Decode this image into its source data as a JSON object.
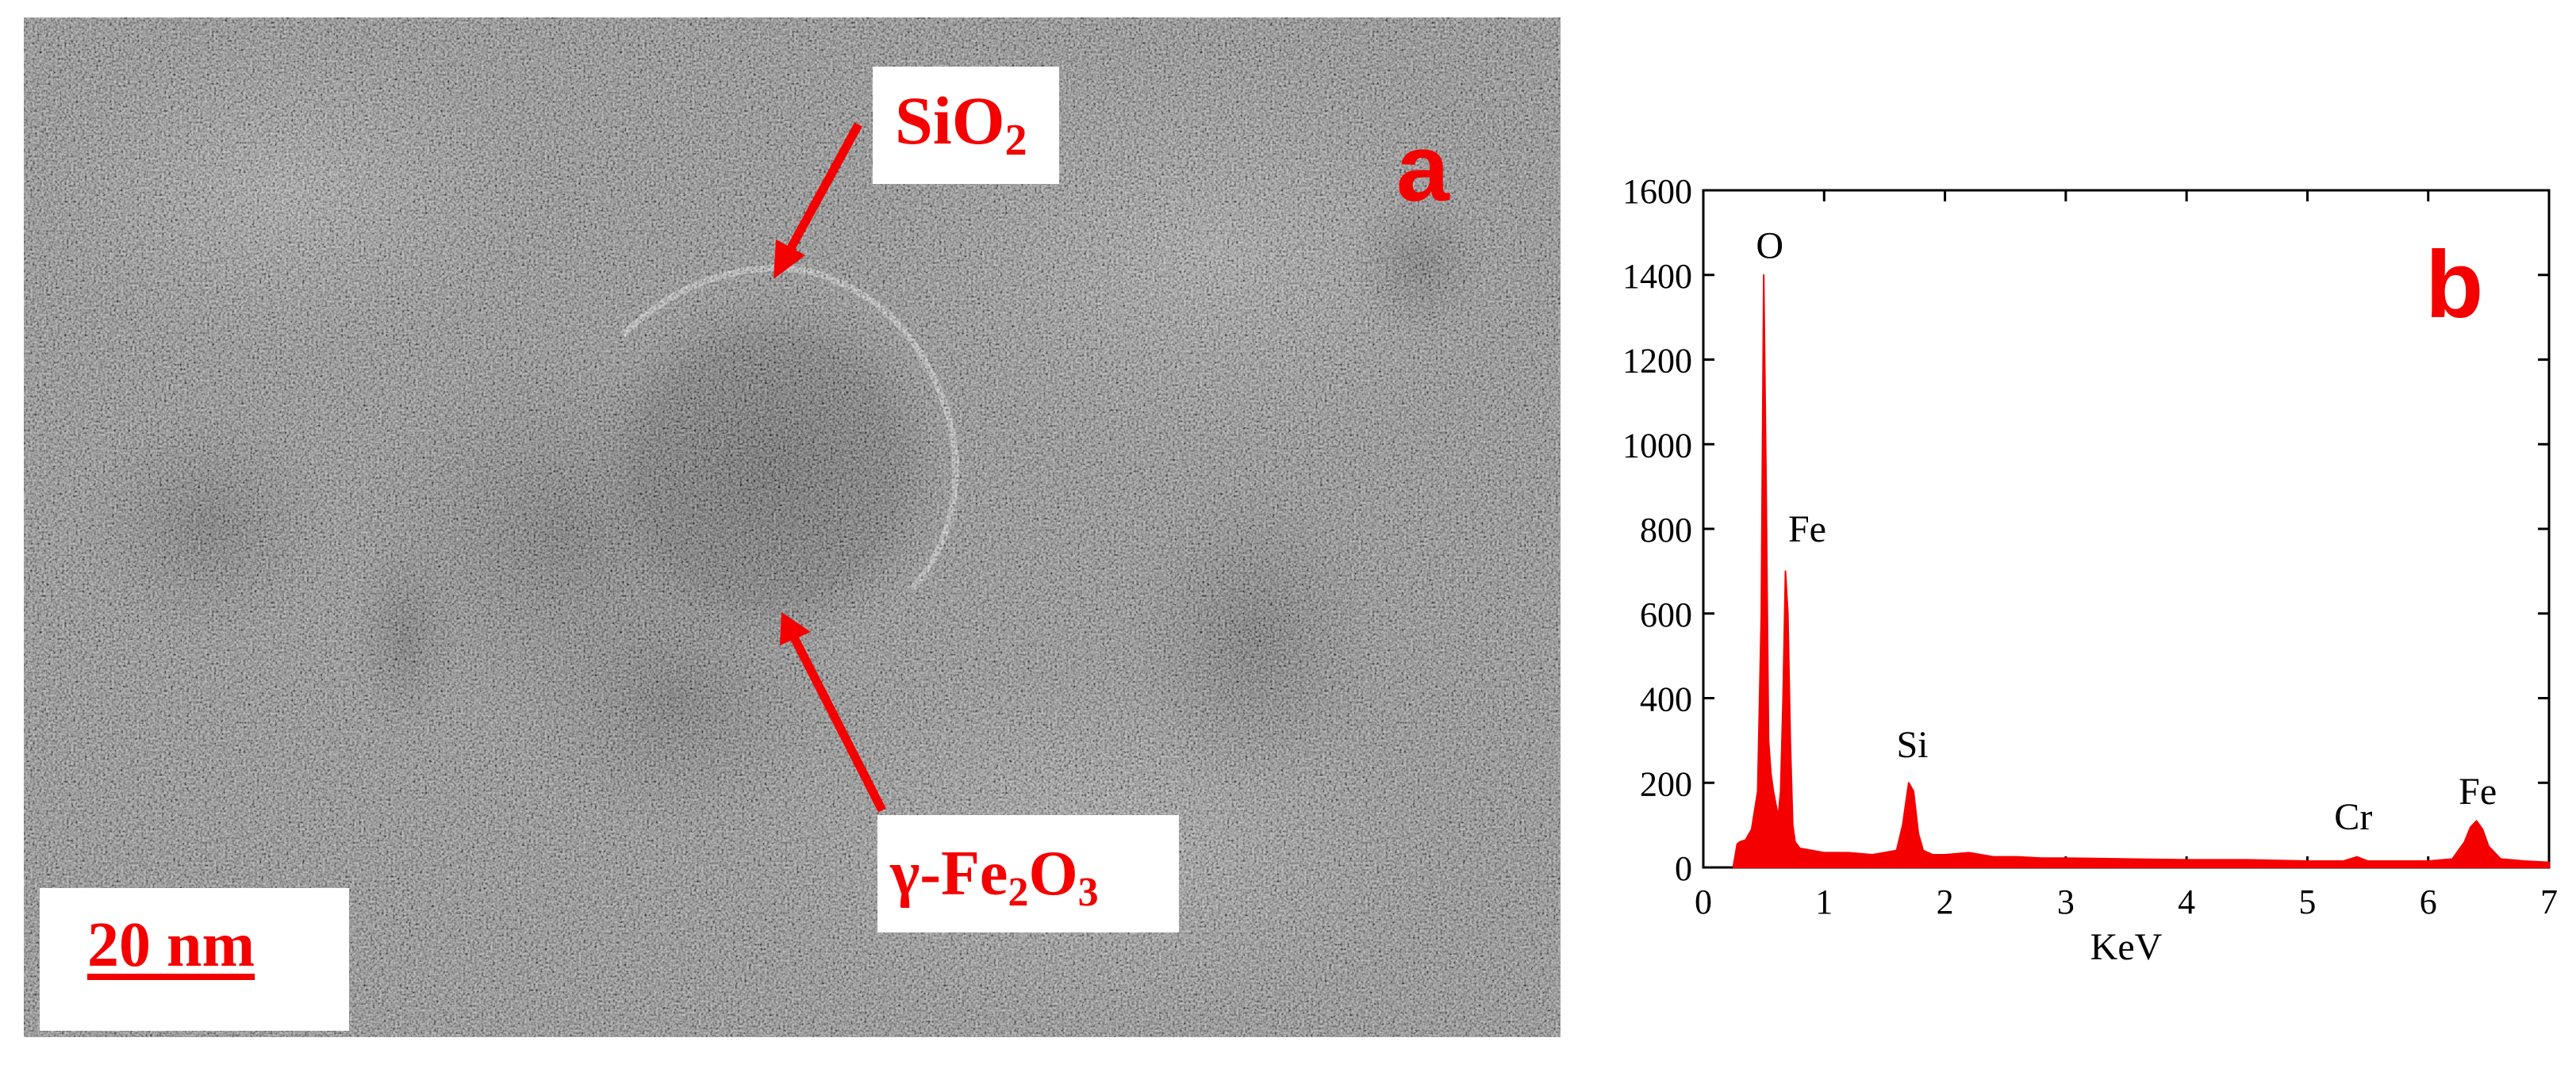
{
  "panel_a": {
    "panel_letter": "a",
    "sio2_label": "SiO",
    "sio2_sub": "2",
    "fe2o3_label_prefix": "γ-Fe",
    "fe2o3_sub1": "2",
    "fe2o3_mid": "O",
    "fe2o3_sub2": "3",
    "scale_bar": "20 nm",
    "accent_color": "#f40000",
    "background_color": "#777777"
  },
  "chart_data": {
    "type": "line",
    "panel_letter": "b",
    "xlabel": "KeV",
    "ylabel": "",
    "xlim": [
      0,
      7
    ],
    "ylim": [
      0,
      1600
    ],
    "x_ticks": [
      0,
      1,
      2,
      3,
      4,
      5,
      6,
      7
    ],
    "y_ticks": [
      0,
      200,
      400,
      600,
      800,
      1000,
      1200,
      1400,
      1600
    ],
    "grid": false,
    "line_color": "#f40000",
    "series": [
      {
        "x": [
          0.25,
          0.28,
          0.3,
          0.35,
          0.4,
          0.45,
          0.48,
          0.5,
          0.52,
          0.54,
          0.56,
          0.58,
          0.6,
          0.62,
          0.64,
          0.66,
          0.68,
          0.7,
          0.72,
          0.74,
          0.76,
          0.8,
          0.9,
          1.0,
          1.2,
          1.4,
          1.6,
          1.65,
          1.7,
          1.74,
          1.78,
          1.82,
          1.9,
          2.0,
          2.2,
          2.3,
          2.4,
          2.6,
          2.8,
          3.0,
          3.5,
          4.0,
          4.5,
          5.0,
          5.3,
          5.41,
          5.5,
          5.8,
          6.0,
          6.2,
          6.3,
          6.35,
          6.4,
          6.45,
          6.5,
          6.6,
          6.8,
          7.0
        ],
        "y": [
          5,
          55,
          60,
          65,
          90,
          180,
          600,
          1400,
          900,
          300,
          220,
          180,
          150,
          120,
          180,
          400,
          700,
          600,
          300,
          100,
          60,
          45,
          40,
          35,
          35,
          30,
          40,
          100,
          200,
          180,
          80,
          40,
          30,
          30,
          35,
          30,
          25,
          25,
          22,
          22,
          20,
          18,
          18,
          15,
          15,
          25,
          15,
          15,
          15,
          20,
          60,
          95,
          110,
          90,
          50,
          20,
          15,
          12
        ]
      }
    ],
    "annotations": [
      {
        "text": "O",
        "x": 0.55,
        "y": 1440
      },
      {
        "text": "Fe",
        "x": 0.86,
        "y": 770
      },
      {
        "text": "Si",
        "x": 1.73,
        "y": 260
      },
      {
        "text": "Cr",
        "x": 5.38,
        "y": 90
      },
      {
        "text": "Fe",
        "x": 6.41,
        "y": 150
      }
    ]
  }
}
